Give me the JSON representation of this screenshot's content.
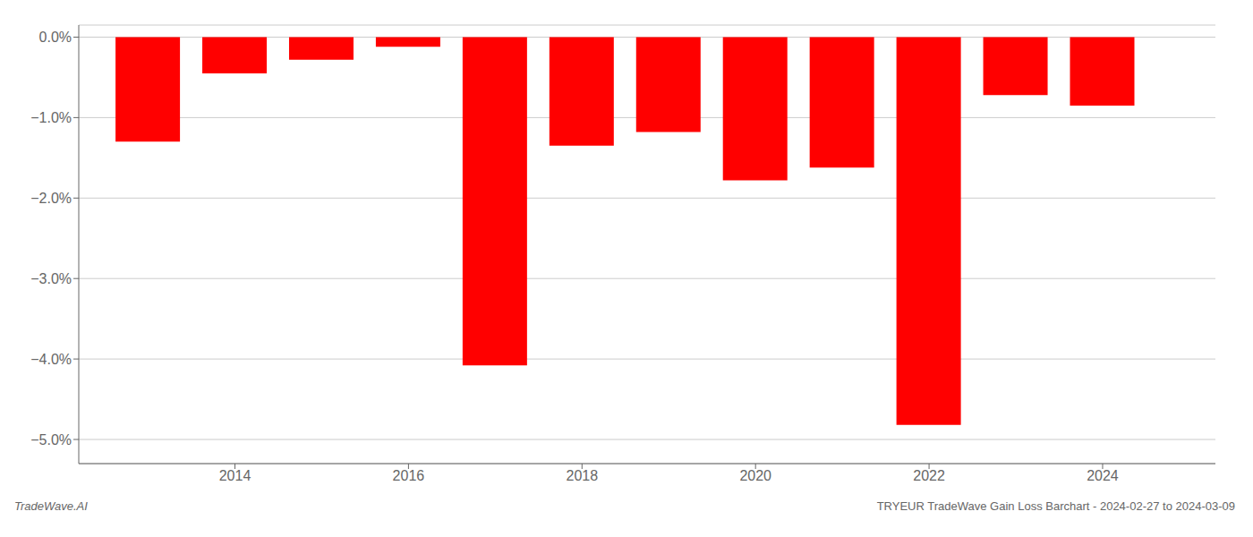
{
  "chart_data": {
    "type": "bar",
    "x": [
      2013,
      2014,
      2015,
      2016,
      2017,
      2018,
      2019,
      2020,
      2021,
      2022,
      2023,
      2024
    ],
    "values": [
      -1.3,
      -0.45,
      -0.28,
      -0.12,
      -4.08,
      -1.35,
      -1.18,
      -1.78,
      -1.62,
      -4.82,
      -0.72,
      -0.85
    ],
    "color": "#ff0000",
    "xlim": [
      2012.2,
      2025.3
    ],
    "xticks": [
      2014,
      2016,
      2018,
      2020,
      2022,
      2024
    ],
    "ylim": [
      -5.3,
      0.15
    ],
    "yticks": [
      {
        "value": 0.0,
        "label": "0.0%"
      },
      {
        "value": -1.0,
        "label": "−1.0%"
      },
      {
        "value": -2.0,
        "label": "−2.0%"
      },
      {
        "value": -3.0,
        "label": "−3.0%"
      },
      {
        "value": -4.0,
        "label": "−4.0%"
      },
      {
        "value": -5.0,
        "label": "−5.0%"
      }
    ],
    "grid": true,
    "annotations": [
      "TradeWave.AI",
      "TRYEUR TradeWave Gain Loss Barchart - 2024-02-27 to 2024-03-09"
    ]
  }
}
